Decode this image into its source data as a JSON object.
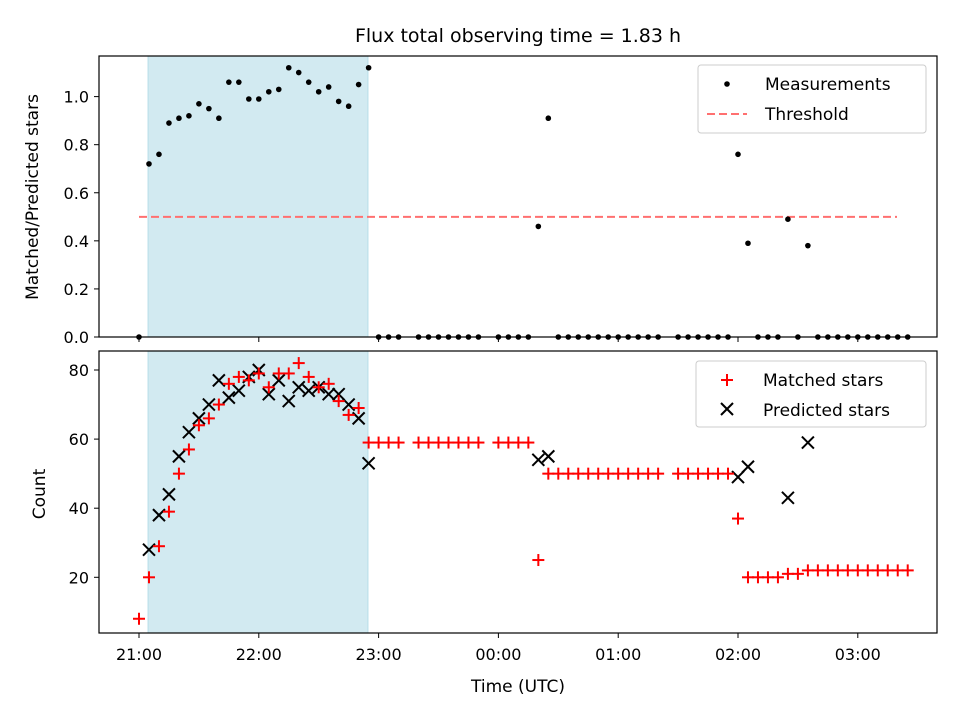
{
  "figure": {
    "title": "Flux total observing time = 1.83 h",
    "xlabel": "Time (UTC)",
    "x_ticks": [
      "21:00",
      "22:00",
      "23:00",
      "00:00",
      "01:00",
      "02:00",
      "03:00"
    ],
    "shade_color": "#add8e6"
  },
  "chart_data": [
    {
      "type": "scatter",
      "ylabel": "Matched/Predicted stars",
      "ylim": [
        0,
        1.17
      ],
      "y_ticks": [
        "0.0",
        "0.2",
        "0.4",
        "0.6",
        "0.8",
        "1.0"
      ],
      "x_unit": "UTC time (hours from 21:00)",
      "shaded_interval": [
        "21:05",
        "22:55"
      ],
      "legend": {
        "position": "top-right",
        "entries": [
          "Measurements",
          "Threshold"
        ]
      },
      "series": [
        {
          "name": "Measurements",
          "marker": "dot",
          "color": "#000000",
          "points": [
            [
              "21:00",
              0.0
            ],
            [
              "21:05",
              0.72
            ],
            [
              "21:10",
              0.76
            ],
            [
              "21:15",
              0.89
            ],
            [
              "21:20",
              0.91
            ],
            [
              "21:25",
              0.92
            ],
            [
              "21:30",
              0.97
            ],
            [
              "21:35",
              0.95
            ],
            [
              "21:40",
              0.91
            ],
            [
              "21:45",
              1.06
            ],
            [
              "21:50",
              1.06
            ],
            [
              "21:55",
              0.99
            ],
            [
              "22:00",
              0.99
            ],
            [
              "22:05",
              1.02
            ],
            [
              "22:10",
              1.03
            ],
            [
              "22:15",
              1.12
            ],
            [
              "22:20",
              1.1
            ],
            [
              "22:25",
              1.06
            ],
            [
              "22:30",
              1.02
            ],
            [
              "22:35",
              1.04
            ],
            [
              "22:40",
              0.98
            ],
            [
              "22:45",
              0.96
            ],
            [
              "22:50",
              1.05
            ],
            [
              "22:55",
              1.12
            ],
            [
              "23:00",
              0.0
            ],
            [
              "23:05",
              0.0
            ],
            [
              "23:10",
              0.0
            ],
            [
              "23:20",
              0.0
            ],
            [
              "23:25",
              0.0
            ],
            [
              "23:30",
              0.0
            ],
            [
              "23:35",
              0.0
            ],
            [
              "23:40",
              0.0
            ],
            [
              "23:45",
              0.0
            ],
            [
              "23:50",
              0.0
            ],
            [
              "00:00",
              0.0
            ],
            [
              "00:05",
              0.0
            ],
            [
              "00:10",
              0.0
            ],
            [
              "00:15",
              0.0
            ],
            [
              "00:20",
              0.46
            ],
            [
              "00:25",
              0.91
            ],
            [
              "00:30",
              0.0
            ],
            [
              "00:35",
              0.0
            ],
            [
              "00:40",
              0.0
            ],
            [
              "00:45",
              0.0
            ],
            [
              "00:50",
              0.0
            ],
            [
              "00:55",
              0.0
            ],
            [
              "01:00",
              0.0
            ],
            [
              "01:05",
              0.0
            ],
            [
              "01:10",
              0.0
            ],
            [
              "01:15",
              0.0
            ],
            [
              "01:20",
              0.0
            ],
            [
              "01:30",
              0.0
            ],
            [
              "01:35",
              0.0
            ],
            [
              "01:40",
              0.0
            ],
            [
              "01:45",
              0.0
            ],
            [
              "01:50",
              0.0
            ],
            [
              "01:55",
              0.0
            ],
            [
              "02:00",
              0.76
            ],
            [
              "02:05",
              0.39
            ],
            [
              "02:10",
              0.0
            ],
            [
              "02:15",
              0.0
            ],
            [
              "02:20",
              0.0
            ],
            [
              "02:25",
              0.49
            ],
            [
              "02:30",
              0.0
            ],
            [
              "02:35",
              0.38
            ],
            [
              "02:40",
              0.0
            ],
            [
              "02:45",
              0.0
            ],
            [
              "02:50",
              0.0
            ],
            [
              "02:55",
              0.0
            ],
            [
              "03:00",
              0.0
            ],
            [
              "03:05",
              0.0
            ],
            [
              "03:10",
              0.0
            ],
            [
              "03:15",
              0.0
            ],
            [
              "03:20",
              0.0
            ],
            [
              "03:25",
              0.0
            ]
          ]
        },
        {
          "name": "Threshold",
          "marker": "dashed-line",
          "color": "#ff7070",
          "y": 0.5,
          "x_range": [
            "21:00",
            "03:30"
          ]
        }
      ]
    },
    {
      "type": "scatter",
      "ylabel": "Count",
      "ylim": [
        4,
        86
      ],
      "y_ticks": [
        "20",
        "40",
        "60",
        "80"
      ],
      "x_unit": "UTC time (hours from 21:00)",
      "shaded_interval": [
        "21:05",
        "22:55"
      ],
      "legend": {
        "position": "top-right",
        "entries": [
          "Matched stars",
          "Predicted stars"
        ]
      },
      "series": [
        {
          "name": "Matched stars",
          "marker": "plus",
          "color": "#ff0000",
          "points": [
            [
              "21:00",
              8
            ],
            [
              "21:05",
              20
            ],
            [
              "21:10",
              29
            ],
            [
              "21:15",
              39
            ],
            [
              "21:20",
              50
            ],
            [
              "21:25",
              57
            ],
            [
              "21:30",
              64
            ],
            [
              "21:35",
              66
            ],
            [
              "21:40",
              70
            ],
            [
              "21:45",
              76
            ],
            [
              "21:50",
              78
            ],
            [
              "21:55",
              77
            ],
            [
              "22:00",
              79
            ],
            [
              "22:05",
              75
            ],
            [
              "22:10",
              79
            ],
            [
              "22:15",
              79
            ],
            [
              "22:20",
              82
            ],
            [
              "22:25",
              78
            ],
            [
              "22:30",
              75
            ],
            [
              "22:35",
              76
            ],
            [
              "22:40",
              71
            ],
            [
              "22:45",
              67
            ],
            [
              "22:50",
              69
            ],
            [
              "22:55",
              59
            ],
            [
              "23:00",
              59
            ],
            [
              "23:05",
              59
            ],
            [
              "23:10",
              59
            ],
            [
              "23:20",
              59
            ],
            [
              "23:25",
              59
            ],
            [
              "23:30",
              59
            ],
            [
              "23:35",
              59
            ],
            [
              "23:40",
              59
            ],
            [
              "23:45",
              59
            ],
            [
              "23:50",
              59
            ],
            [
              "00:00",
              59
            ],
            [
              "00:05",
              59
            ],
            [
              "00:10",
              59
            ],
            [
              "00:15",
              59
            ],
            [
              "00:20",
              25
            ],
            [
              "00:25",
              50
            ],
            [
              "00:30",
              50
            ],
            [
              "00:35",
              50
            ],
            [
              "00:40",
              50
            ],
            [
              "00:45",
              50
            ],
            [
              "00:50",
              50
            ],
            [
              "00:55",
              50
            ],
            [
              "01:00",
              50
            ],
            [
              "01:05",
              50
            ],
            [
              "01:10",
              50
            ],
            [
              "01:15",
              50
            ],
            [
              "01:20",
              50
            ],
            [
              "01:30",
              50
            ],
            [
              "01:35",
              50
            ],
            [
              "01:40",
              50
            ],
            [
              "01:45",
              50
            ],
            [
              "01:50",
              50
            ],
            [
              "01:55",
              50
            ],
            [
              "02:00",
              37
            ],
            [
              "02:05",
              20
            ],
            [
              "02:10",
              20
            ],
            [
              "02:15",
              20
            ],
            [
              "02:20",
              20
            ],
            [
              "02:25",
              21
            ],
            [
              "02:30",
              21
            ],
            [
              "02:35",
              22
            ],
            [
              "02:40",
              22
            ],
            [
              "02:45",
              22
            ],
            [
              "02:50",
              22
            ],
            [
              "02:55",
              22
            ],
            [
              "03:00",
              22
            ],
            [
              "03:05",
              22
            ],
            [
              "03:10",
              22
            ],
            [
              "03:15",
              22
            ],
            [
              "03:20",
              22
            ],
            [
              "03:25",
              22
            ]
          ]
        },
        {
          "name": "Predicted stars",
          "marker": "x",
          "color": "#000000",
          "points": [
            [
              "21:05",
              28
            ],
            [
              "21:10",
              38
            ],
            [
              "21:15",
              44
            ],
            [
              "21:20",
              55
            ],
            [
              "21:25",
              62
            ],
            [
              "21:30",
              66
            ],
            [
              "21:35",
              70
            ],
            [
              "21:40",
              77
            ],
            [
              "21:45",
              72
            ],
            [
              "21:50",
              74
            ],
            [
              "21:55",
              78
            ],
            [
              "22:00",
              80
            ],
            [
              "22:05",
              73
            ],
            [
              "22:10",
              77
            ],
            [
              "22:15",
              71
            ],
            [
              "22:20",
              75
            ],
            [
              "22:25",
              74
            ],
            [
              "22:30",
              75
            ],
            [
              "22:35",
              73
            ],
            [
              "22:40",
              73
            ],
            [
              "22:45",
              70
            ],
            [
              "22:50",
              66
            ],
            [
              "22:55",
              53
            ],
            [
              "00:20",
              54
            ],
            [
              "00:25",
              55
            ],
            [
              "02:00",
              49
            ],
            [
              "02:05",
              52
            ],
            [
              "02:25",
              43
            ],
            [
              "02:35",
              59
            ]
          ]
        }
      ]
    }
  ]
}
